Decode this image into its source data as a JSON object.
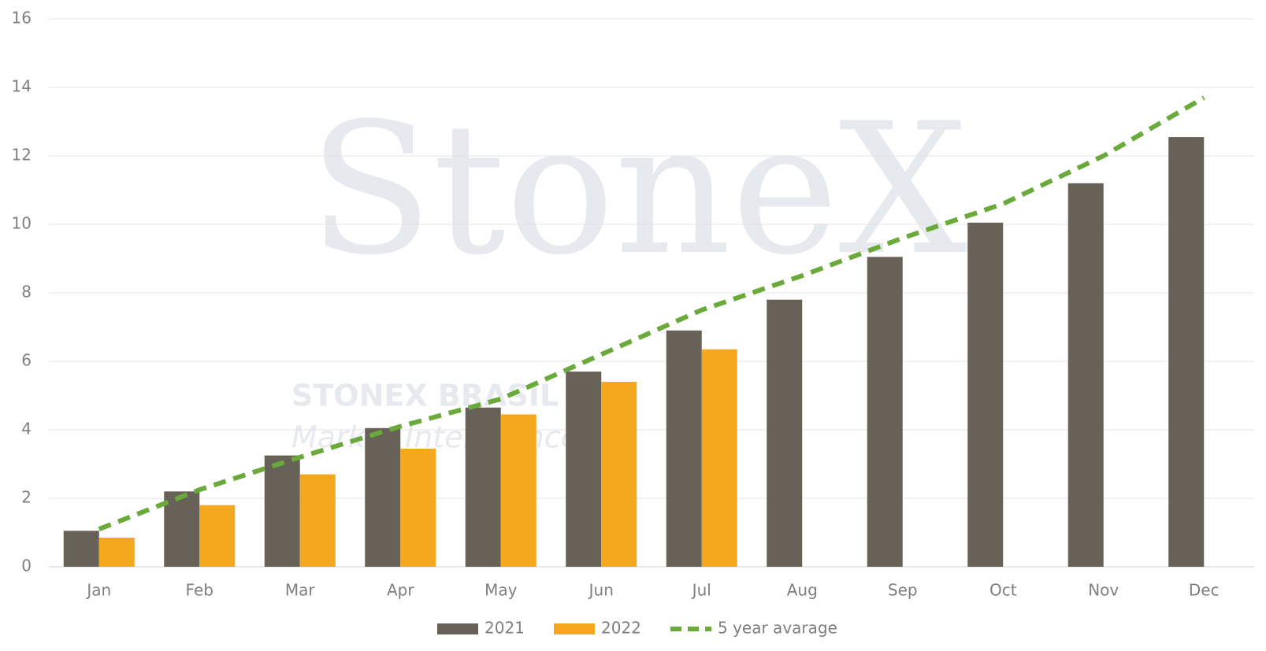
{
  "chart_data": {
    "type": "bar",
    "categories": [
      "Jan",
      "Feb",
      "Mar",
      "Apr",
      "May",
      "Jun",
      "Jul",
      "Aug",
      "Sep",
      "Oct",
      "Nov",
      "Dec"
    ],
    "series": [
      {
        "name": "2021",
        "color": "#686157",
        "values": [
          1.05,
          2.2,
          3.25,
          4.05,
          4.65,
          5.7,
          6.9,
          7.8,
          9.05,
          10.05,
          11.2,
          12.55
        ]
      },
      {
        "name": "2022",
        "color": "#f4a81d",
        "values": [
          0.85,
          1.8,
          2.7,
          3.45,
          4.45,
          5.4,
          6.35,
          null,
          null,
          null,
          null,
          null
        ]
      },
      {
        "name": "5 year avarage",
        "color": "#6aaa3a",
        "type": "line",
        "dashed": true,
        "values": [
          1.1,
          2.25,
          3.2,
          4.1,
          4.9,
          6.2,
          7.5,
          8.5,
          9.6,
          10.6,
          12.0,
          13.7
        ]
      }
    ],
    "ylim": [
      0,
      16
    ],
    "yticks": [
      0,
      2,
      4,
      6,
      8,
      10,
      12,
      14,
      16
    ],
    "grid": true,
    "legend": "bottom",
    "watermark": [
      "StoneX",
      "STONEX BRASIL",
      "Market Intelligence"
    ]
  }
}
